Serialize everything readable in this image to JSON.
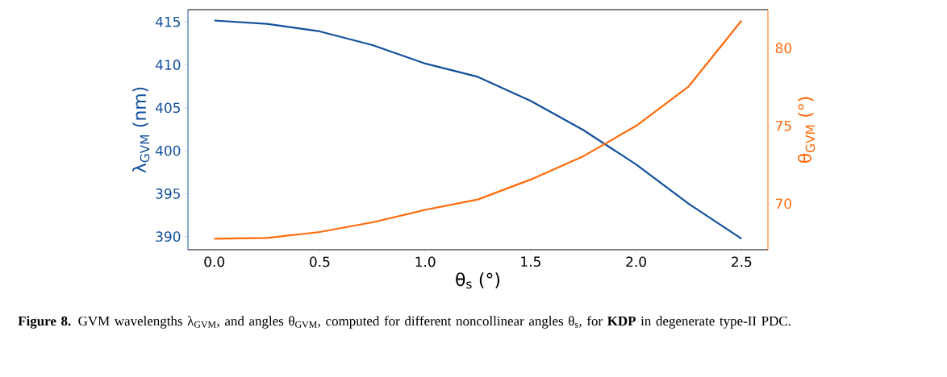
{
  "chart_data": {
    "type": "line",
    "xlabel": "θ$_{s}$ (°)",
    "ylabel": "λ$_{GVM}$ (nm)",
    "y2label": "θ$_{GVM}$ (°)",
    "x": [
      0,
      0.25,
      0.5,
      0.75,
      1.0,
      1.25,
      1.5,
      1.75,
      2.0,
      2.25,
      2.5
    ],
    "series": [
      {
        "color": "#12509c",
        "values": [
          415.16,
          414.78,
          413.9,
          412.3,
          410.15,
          408.6,
          405.8,
          402.4,
          398.4,
          393.8,
          389.74
        ]
      },
      {
        "color": "#ff6a0a",
        "axis": "y2",
        "values": [
          67.74,
          67.8,
          68.18,
          68.8,
          69.6,
          70.27,
          71.55,
          73.05,
          75.0,
          77.55,
          81.77
        ]
      }
    ],
    "xlim": [
      -0.125,
      2.625
    ],
    "ylim": [
      388.47,
      416.43
    ],
    "y2lim": [
      67.04,
      82.47
    ],
    "xticks": [
      {
        "value": 0,
        "label": "0.0"
      },
      {
        "value": 0.5,
        "label": "0.5"
      },
      {
        "value": 1.0,
        "label": "1.0"
      },
      {
        "value": 1.5,
        "label": "1.5"
      },
      {
        "value": 2.0,
        "label": "2.0"
      },
      {
        "value": 2.5,
        "label": "2.5"
      }
    ],
    "yticks": [
      390,
      395,
      400,
      405,
      410,
      415
    ],
    "y2ticks": [
      70,
      75,
      80
    ],
    "annotations": [
      "**Figure 8.** GVM wavelengths λ$_{GVM}$, and angles θ$_{GVM}$, computed for different noncollinear angles θ$_{s}$, for **KDP** in degenerate type-II PDC."
    ]
  }
}
